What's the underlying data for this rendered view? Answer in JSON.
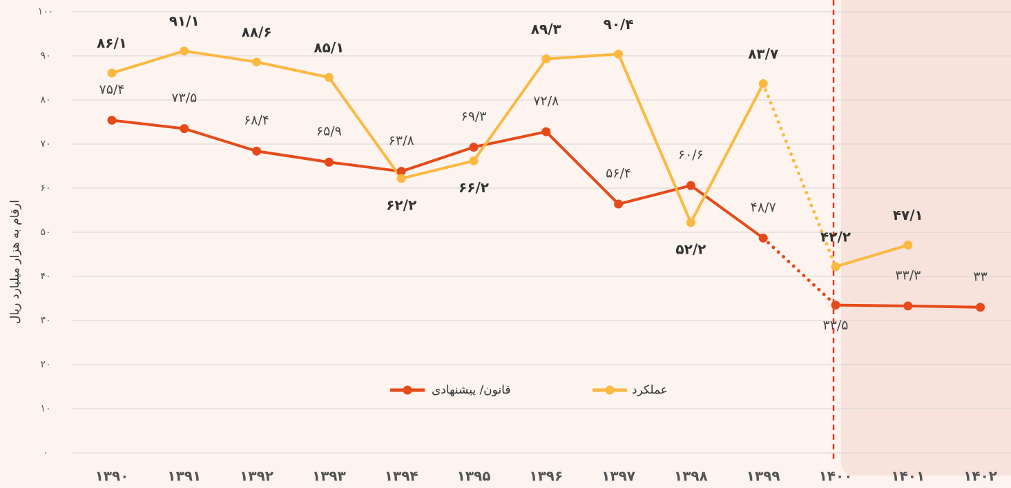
{
  "chart_data": {
    "type": "line",
    "y_label": "ارقام به هزار میلیارد ریال",
    "categories": [
      "۱۳۹۰",
      "۱۳۹۱",
      "۱۳۹۲",
      "۱۳۹۳",
      "۱۳۹۴",
      "۱۳۹۵",
      "۱۳۹۶",
      "۱۳۹۷",
      "۱۳۹۸",
      "۱۳۹۹",
      "۱۴۰۰",
      "۱۴۰۱",
      "۱۴۰۲"
    ],
    "series": [
      {
        "name": "قانون/ پیشنهادی",
        "color": "#e64a19",
        "values": [
          75.4,
          73.5,
          68.4,
          65.9,
          63.8,
          69.3,
          72.8,
          56.4,
          60.6,
          48.7,
          33.5,
          33.3,
          33
        ],
        "value_labels": [
          "۷۵/۴",
          "۷۳/۵",
          "۶۸/۴",
          "۶۵/۹",
          "۶۳/۸",
          "۶۹/۳",
          "۷۲/۸",
          "۵۶/۴",
          "۶۰/۶",
          "۴۸/۷",
          "۳۳/۵",
          "۳۳/۳",
          "۳۳"
        ]
      },
      {
        "name": "عملکرد",
        "color": "#fbb941",
        "values": [
          86.1,
          91.1,
          88.6,
          85.1,
          62.2,
          66.2,
          89.3,
          90.4,
          52.2,
          83.7,
          42.2,
          47.1,
          null
        ],
        "value_labels": [
          "۸۶/۱",
          "۹۱/۱",
          "۸۸/۶",
          "۸۵/۱",
          "۶۲/۲",
          "۶۶/۲",
          "۸۹/۳",
          "۹۰/۴",
          "۵۲/۲",
          "۸۳/۷",
          "۴۲/۲",
          "۴۷/۱",
          null
        ]
      }
    ],
    "ylim": [
      0,
      100
    ],
    "yticks": [
      {
        "value": 0,
        "label": "۰"
      },
      {
        "value": 10,
        "label": "۱۰"
      },
      {
        "value": 20,
        "label": "۲۰"
      },
      {
        "value": 30,
        "label": "۳۰"
      },
      {
        "value": 40,
        "label": "۴۰"
      },
      {
        "value": 50,
        "label": "۵۰"
      },
      {
        "value": 60,
        "label": "۶۰"
      },
      {
        "value": 70,
        "label": "۷۰"
      },
      {
        "value": 80,
        "label": "۸۰"
      },
      {
        "value": 90,
        "label": "۹۰"
      },
      {
        "value": 100,
        "label": "۱۰۰"
      }
    ],
    "grid": true,
    "projection_start": 10
  }
}
